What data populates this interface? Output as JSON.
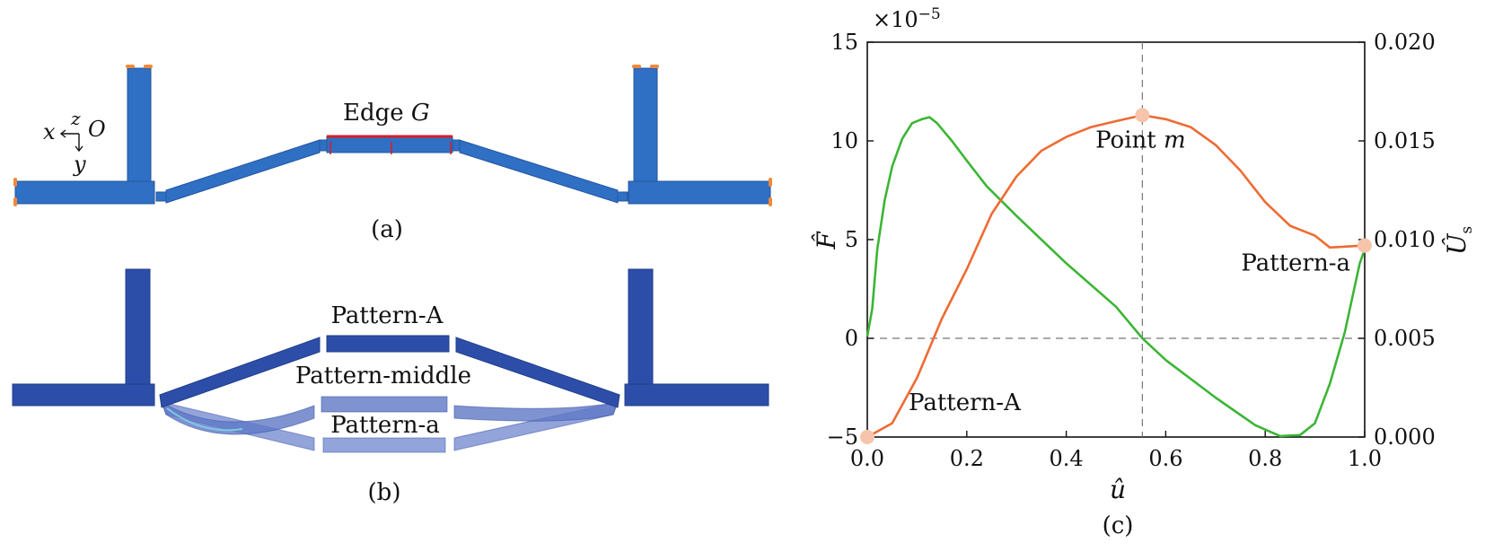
{
  "panel_a": {
    "axis_x": "x",
    "axis_z": "z",
    "axis_y": "y",
    "origin": "O",
    "edge_label": "Edge",
    "edge_symbol": "G",
    "caption": "(a)",
    "colors": {
      "beam": "#2f6fc4",
      "edge": "#d81f26",
      "constraint": "#f0883a"
    }
  },
  "panel_b": {
    "labels": {
      "pattern_A": "Pattern-A",
      "pattern_middle": "Pattern-middle",
      "pattern_a": "Pattern-a"
    },
    "caption": "(b)",
    "colors": {
      "primary": "#2d4ea8",
      "ghost": "#5f78c6"
    }
  },
  "panel_c": {
    "caption": "(c)"
  },
  "chart_data": {
    "type": "line",
    "xlabel": "û",
    "ylabel_left": "F̂",
    "ylabel_right": "Û",
    "ylabel_right_sub": "s",
    "left_multiplier_base": "×10",
    "left_multiplier_exp": "−5",
    "xlim": [
      0.0,
      1.0
    ],
    "ylim_left": [
      -5,
      15
    ],
    "ylim_right": [
      0.0,
      0.02
    ],
    "x_ticks": [
      "0.0",
      "0.2",
      "0.4",
      "0.6",
      "0.8",
      "1.0"
    ],
    "y_ticks_left": [
      "−5",
      "0",
      "5",
      "10",
      "15"
    ],
    "y_ticks_right": [
      "0.000",
      "0.005",
      "0.010",
      "0.015",
      "0.020"
    ],
    "reference_lines": {
      "horizontal_left_y": 0,
      "vertical_x": 0.553
    },
    "series": [
      {
        "axis": "left",
        "color": "#3cb535",
        "points": [
          [
            0.0,
            0.1
          ],
          [
            0.01,
            1.5
          ],
          [
            0.02,
            4.5
          ],
          [
            0.035,
            7.0
          ],
          [
            0.05,
            8.7
          ],
          [
            0.07,
            10.1
          ],
          [
            0.09,
            10.9
          ],
          [
            0.11,
            11.1
          ],
          [
            0.125,
            11.2
          ],
          [
            0.14,
            10.9
          ],
          [
            0.17,
            10.0
          ],
          [
            0.2,
            9.0
          ],
          [
            0.24,
            7.7
          ],
          [
            0.3,
            6.2
          ],
          [
            0.4,
            3.8
          ],
          [
            0.5,
            1.6
          ],
          [
            0.553,
            0.0
          ],
          [
            0.6,
            -1.1
          ],
          [
            0.7,
            -3.0
          ],
          [
            0.78,
            -4.4
          ],
          [
            0.83,
            -4.95
          ],
          [
            0.87,
            -4.9
          ],
          [
            0.9,
            -4.3
          ],
          [
            0.93,
            -2.3
          ],
          [
            0.96,
            0.3
          ],
          [
            0.99,
            3.8
          ],
          [
            1.0,
            4.5
          ]
        ]
      },
      {
        "axis": "right",
        "color": "#ee6b32",
        "points": [
          [
            0.0,
            0.0
          ],
          [
            0.05,
            0.0007
          ],
          [
            0.1,
            0.003
          ],
          [
            0.15,
            0.006
          ],
          [
            0.2,
            0.0085
          ],
          [
            0.25,
            0.0113
          ],
          [
            0.3,
            0.0132
          ],
          [
            0.35,
            0.0145
          ],
          [
            0.4,
            0.0152
          ],
          [
            0.45,
            0.0157
          ],
          [
            0.5,
            0.016
          ],
          [
            0.553,
            0.0163
          ],
          [
            0.6,
            0.0161
          ],
          [
            0.65,
            0.0157
          ],
          [
            0.7,
            0.0148
          ],
          [
            0.75,
            0.0135
          ],
          [
            0.8,
            0.0119
          ],
          [
            0.85,
            0.0107
          ],
          [
            0.9,
            0.0102
          ],
          [
            0.93,
            0.0096
          ],
          [
            1.0,
            0.0097
          ]
        ]
      }
    ],
    "markers": [
      {
        "axis": "right",
        "x": 0.0,
        "y": 0.0,
        "label": "Pattern-A"
      },
      {
        "axis": "right",
        "x": 0.553,
        "y": 0.0163,
        "label": "Point",
        "label_symbol": "m"
      },
      {
        "axis": "right",
        "x": 1.0,
        "y": 0.0097,
        "label": "Pattern-a"
      }
    ],
    "marker_color": "#f6c4aa"
  }
}
